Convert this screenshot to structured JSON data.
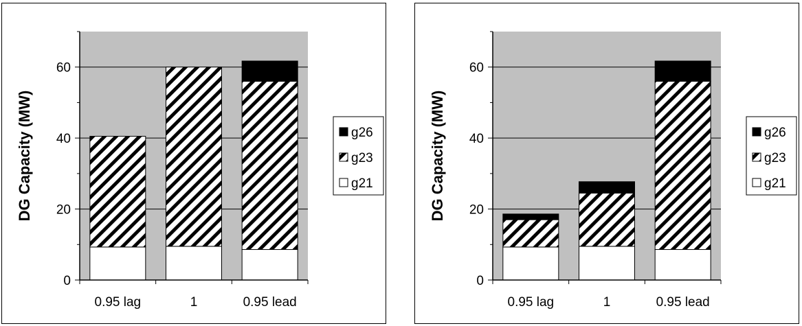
{
  "chart_data": [
    {
      "type": "bar",
      "stacked": true,
      "categories": [
        "0.95 lag",
        "1",
        "0.95 lead"
      ],
      "series": [
        {
          "name": "g21",
          "values": [
            9.3,
            9.5,
            8.6
          ],
          "fill": "white"
        },
        {
          "name": "g23",
          "values": [
            31.2,
            50.5,
            47.4
          ],
          "fill": "hatch"
        },
        {
          "name": "g26",
          "values": [
            0,
            0,
            5.7
          ],
          "fill": "black"
        }
      ],
      "ylabel": "DG Capacity (MW)",
      "xlabel": "",
      "ylim": [
        0,
        70
      ],
      "yticks": [
        0,
        20,
        40,
        60
      ],
      "grid": true,
      "plot_background": "#c0c0c0",
      "legend_position": "right"
    },
    {
      "type": "bar",
      "stacked": true,
      "categories": [
        "0.95 lag",
        "1",
        "0.95 lead"
      ],
      "series": [
        {
          "name": "g21",
          "values": [
            9.3,
            9.5,
            8.6
          ],
          "fill": "white"
        },
        {
          "name": "g23",
          "values": [
            7.7,
            15.0,
            47.4
          ],
          "fill": "hatch"
        },
        {
          "name": "g26",
          "values": [
            1.6,
            3.2,
            5.7
          ],
          "fill": "black"
        }
      ],
      "ylabel": "DG Capacity (MW)",
      "xlabel": "",
      "ylim": [
        0,
        70
      ],
      "yticks": [
        0,
        20,
        40,
        60
      ],
      "grid": true,
      "plot_background": "#c0c0c0",
      "legend_position": "right"
    }
  ]
}
